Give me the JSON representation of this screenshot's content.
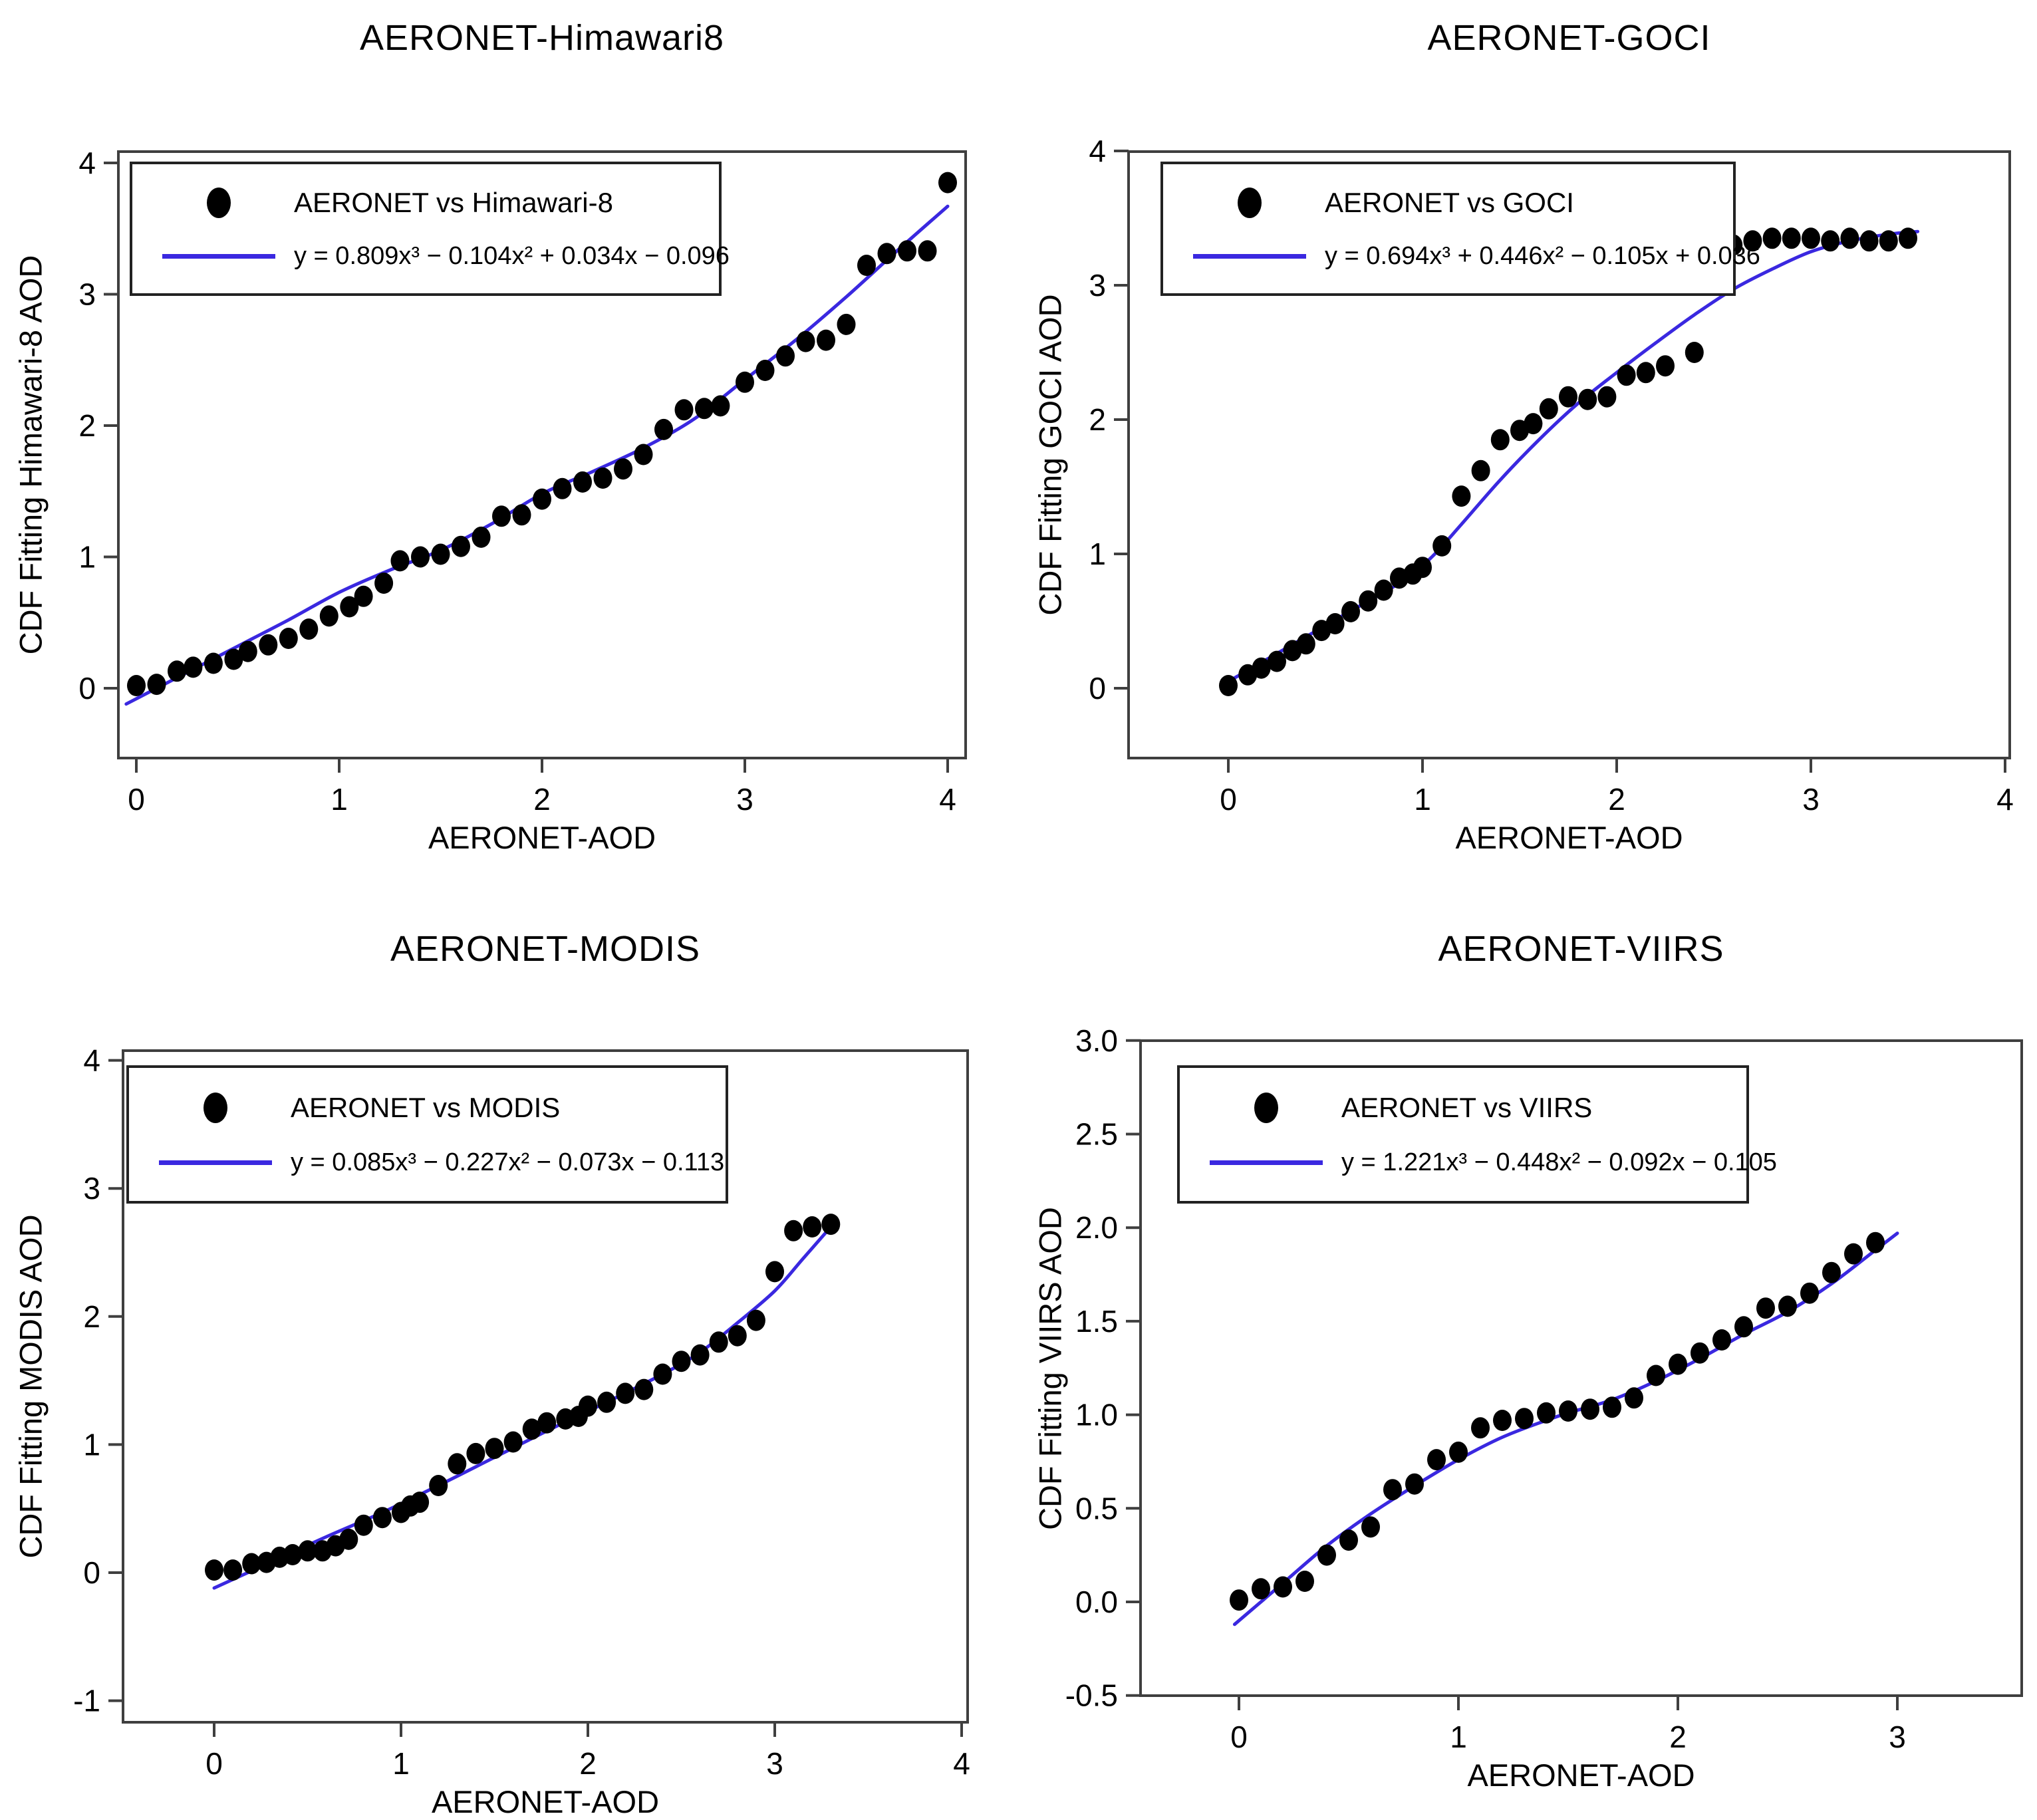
{
  "page": {
    "background": "#ffffff"
  },
  "styles": {
    "fit_line_color": "#3a28e0",
    "point_color": "#000000",
    "axis_color": "#3f3f3f",
    "text_color": "#000000"
  },
  "chart_data": [
    {
      "type": "scatter",
      "title": "AERONET-Himawari8",
      "xlabel": "AERONET-AOD",
      "ylabel": "CDF Fitting Himawari-8 AOD",
      "legend": {
        "position": "top-left",
        "marker_label": "AERONET vs Himawari-8",
        "fit_label": "y = 0.809x³ − 0.104x² + 0.034x − 0.096"
      },
      "xlim": [
        -0.09,
        4.09
      ],
      "ylim": [
        -0.53,
        4.09
      ],
      "grid": false,
      "xtick_values": [
        0,
        1,
        2,
        3,
        4
      ],
      "xtick_labels": [
        "0",
        "1",
        "2",
        "3",
        "4"
      ],
      "ytick_values": [
        0,
        1,
        2,
        3,
        4
      ],
      "ytick_labels": [
        "0",
        "1",
        "2",
        "3",
        "4"
      ],
      "points": [
        [
          0.0,
          0.02
        ],
        [
          0.1,
          0.03
        ],
        [
          0.2,
          0.13
        ],
        [
          0.28,
          0.16
        ],
        [
          0.38,
          0.19
        ],
        [
          0.48,
          0.22
        ],
        [
          0.55,
          0.28
        ],
        [
          0.65,
          0.33
        ],
        [
          0.75,
          0.38
        ],
        [
          0.85,
          0.45
        ],
        [
          0.95,
          0.55
        ],
        [
          1.05,
          0.62
        ],
        [
          1.12,
          0.7
        ],
        [
          1.22,
          0.8
        ],
        [
          1.3,
          0.97
        ],
        [
          1.4,
          1.0
        ],
        [
          1.5,
          1.02
        ],
        [
          1.6,
          1.08
        ],
        [
          1.7,
          1.15
        ],
        [
          1.8,
          1.31
        ],
        [
          1.9,
          1.32
        ],
        [
          2.0,
          1.44
        ],
        [
          2.1,
          1.52
        ],
        [
          2.2,
          1.57
        ],
        [
          2.3,
          1.6
        ],
        [
          2.4,
          1.67
        ],
        [
          2.5,
          1.78
        ],
        [
          2.6,
          1.97
        ],
        [
          2.7,
          2.12
        ],
        [
          2.8,
          2.13
        ],
        [
          2.88,
          2.15
        ],
        [
          3.0,
          2.33
        ],
        [
          3.1,
          2.42
        ],
        [
          3.2,
          2.53
        ],
        [
          3.3,
          2.64
        ],
        [
          3.4,
          2.65
        ],
        [
          3.5,
          2.77
        ],
        [
          3.6,
          3.22
        ],
        [
          3.7,
          3.31
        ],
        [
          3.8,
          3.33
        ],
        [
          3.9,
          3.33
        ],
        [
          4.0,
          3.85
        ]
      ],
      "fit_curve": [
        [
          -0.05,
          -0.12
        ],
        [
          0.25,
          0.12
        ],
        [
          0.5,
          0.32
        ],
        [
          0.75,
          0.52
        ],
        [
          1.0,
          0.73
        ],
        [
          1.25,
          0.9
        ],
        [
          1.5,
          1.05
        ],
        [
          1.75,
          1.25
        ],
        [
          2.0,
          1.48
        ],
        [
          2.25,
          1.65
        ],
        [
          2.5,
          1.83
        ],
        [
          2.75,
          2.05
        ],
        [
          3.0,
          2.35
        ],
        [
          3.25,
          2.65
        ],
        [
          3.5,
          2.98
        ],
        [
          3.75,
          3.33
        ],
        [
          4.0,
          3.67
        ]
      ]
    },
    {
      "type": "scatter",
      "title": "AERONET-GOCI",
      "xlabel": "AERONET-AOD",
      "ylabel": "CDF Fitting GOCI AOD",
      "legend": {
        "position": "top-left",
        "marker_label": "AERONET vs GOCI",
        "fit_label": "y = 0.694x³ + 0.446x² − 0.105x + 0.036"
      },
      "xlim": [
        -0.51,
        4.02
      ],
      "ylim": [
        -0.52,
        3.98
      ],
      "grid": false,
      "xtick_values": [
        0,
        1,
        2,
        3,
        4
      ],
      "xtick_labels": [
        "0",
        "1",
        "2",
        "3",
        "4"
      ],
      "ytick_values": [
        0,
        1,
        2,
        3,
        4
      ],
      "ytick_labels": [
        "0",
        "1",
        "2",
        "3",
        "4"
      ],
      "points": [
        [
          0.0,
          0.02
        ],
        [
          0.1,
          0.1
        ],
        [
          0.17,
          0.15
        ],
        [
          0.25,
          0.2
        ],
        [
          0.33,
          0.28
        ],
        [
          0.4,
          0.33
        ],
        [
          0.48,
          0.43
        ],
        [
          0.55,
          0.48
        ],
        [
          0.63,
          0.57
        ],
        [
          0.72,
          0.65
        ],
        [
          0.8,
          0.73
        ],
        [
          0.88,
          0.82
        ],
        [
          0.95,
          0.85
        ],
        [
          1.0,
          0.9
        ],
        [
          1.1,
          1.06
        ],
        [
          1.2,
          1.43
        ],
        [
          1.3,
          1.62
        ],
        [
          1.4,
          1.85
        ],
        [
          1.5,
          1.92
        ],
        [
          1.57,
          1.97
        ],
        [
          1.65,
          2.08
        ],
        [
          1.75,
          2.17
        ],
        [
          1.85,
          2.15
        ],
        [
          1.95,
          2.17
        ],
        [
          2.05,
          2.33
        ],
        [
          2.15,
          2.35
        ],
        [
          2.25,
          2.4
        ],
        [
          2.4,
          2.5
        ],
        [
          2.5,
          3.2
        ],
        [
          2.6,
          3.3
        ],
        [
          2.7,
          3.33
        ],
        [
          2.8,
          3.35
        ],
        [
          2.9,
          3.35
        ],
        [
          3.0,
          3.35
        ],
        [
          3.1,
          3.33
        ],
        [
          3.2,
          3.35
        ],
        [
          3.3,
          3.33
        ],
        [
          3.4,
          3.33
        ],
        [
          3.5,
          3.35
        ]
      ],
      "fit_curve": [
        [
          0.0,
          0.05
        ],
        [
          0.3,
          0.3
        ],
        [
          0.6,
          0.55
        ],
        [
          0.9,
          0.8
        ],
        [
          1.05,
          0.98
        ],
        [
          1.2,
          1.22
        ],
        [
          1.4,
          1.55
        ],
        [
          1.6,
          1.85
        ],
        [
          1.8,
          2.12
        ],
        [
          2.0,
          2.35
        ],
        [
          2.2,
          2.57
        ],
        [
          2.4,
          2.78
        ],
        [
          2.6,
          2.97
        ],
        [
          2.8,
          3.12
        ],
        [
          3.0,
          3.25
        ],
        [
          3.2,
          3.33
        ],
        [
          3.4,
          3.38
        ],
        [
          3.55,
          3.4
        ]
      ]
    },
    {
      "type": "scatter",
      "title": "AERONET-MODIS",
      "xlabel": "AERONET-AOD",
      "ylabel": "CDF Fitting MODIS AOD",
      "legend": {
        "position": "top-left",
        "marker_label": "AERONET vs MODIS",
        "fit_label": "y = 0.085x³ − 0.227x² − 0.073x − 0.113"
      },
      "xlim": [
        -0.49,
        4.03
      ],
      "ylim": [
        -1.17,
        4.08
      ],
      "grid": false,
      "xtick_values": [
        0,
        1,
        2,
        3,
        4
      ],
      "xtick_labels": [
        "0",
        "1",
        "2",
        "3",
        "4"
      ],
      "ytick_values": [
        -1,
        0,
        1,
        2,
        3,
        4
      ],
      "ytick_labels": [
        "-1",
        "0",
        "1",
        "2",
        "3",
        "4"
      ],
      "points": [
        [
          0.0,
          0.02
        ],
        [
          0.1,
          0.02
        ],
        [
          0.2,
          0.07
        ],
        [
          0.28,
          0.08
        ],
        [
          0.35,
          0.12
        ],
        [
          0.42,
          0.14
        ],
        [
          0.5,
          0.17
        ],
        [
          0.58,
          0.17
        ],
        [
          0.65,
          0.21
        ],
        [
          0.72,
          0.26
        ],
        [
          0.8,
          0.37
        ],
        [
          0.9,
          0.43
        ],
        [
          1.0,
          0.47
        ],
        [
          1.05,
          0.52
        ],
        [
          1.1,
          0.55
        ],
        [
          1.2,
          0.68
        ],
        [
          1.3,
          0.85
        ],
        [
          1.4,
          0.93
        ],
        [
          1.5,
          0.97
        ],
        [
          1.6,
          1.02
        ],
        [
          1.7,
          1.12
        ],
        [
          1.78,
          1.17
        ],
        [
          1.88,
          1.2
        ],
        [
          1.95,
          1.22
        ],
        [
          2.0,
          1.3
        ],
        [
          2.1,
          1.33
        ],
        [
          2.2,
          1.4
        ],
        [
          2.3,
          1.43
        ],
        [
          2.4,
          1.55
        ],
        [
          2.5,
          1.65
        ],
        [
          2.6,
          1.7
        ],
        [
          2.7,
          1.8
        ],
        [
          2.8,
          1.85
        ],
        [
          2.9,
          1.97
        ],
        [
          3.0,
          2.35
        ],
        [
          3.1,
          2.67
        ],
        [
          3.2,
          2.7
        ],
        [
          3.3,
          2.72
        ]
      ],
      "fit_curve": [
        [
          0.0,
          -0.12
        ],
        [
          0.3,
          0.08
        ],
        [
          0.6,
          0.28
        ],
        [
          0.9,
          0.47
        ],
        [
          1.2,
          0.68
        ],
        [
          1.5,
          0.9
        ],
        [
          1.8,
          1.12
        ],
        [
          2.1,
          1.33
        ],
        [
          2.4,
          1.55
        ],
        [
          2.6,
          1.72
        ],
        [
          2.8,
          1.95
        ],
        [
          3.0,
          2.2
        ],
        [
          3.15,
          2.45
        ],
        [
          3.3,
          2.7
        ]
      ]
    },
    {
      "type": "scatter",
      "title": "AERONET-VIIRS",
      "xlabel": "AERONET-AOD",
      "ylabel": "CDF Fitting VIIRS AOD",
      "legend": {
        "position": "top-left",
        "marker_label": "AERONET vs VIIRS",
        "fit_label": "y = 1.221x³ − 0.448x² − 0.092x − 0.105"
      },
      "xlim": [
        -0.45,
        3.57
      ],
      "ylim": [
        -0.5,
        3.0
      ],
      "grid": false,
      "xtick_values": [
        0,
        1,
        2,
        3
      ],
      "xtick_labels": [
        "0",
        "1",
        "2",
        "3"
      ],
      "ytick_values": [
        -0.5,
        0.0,
        0.5,
        1.0,
        1.5,
        2.0,
        2.5,
        3.0
      ],
      "ytick_labels": [
        "-0.5",
        "0.0",
        "0.5",
        "1.0",
        "1.5",
        "2.0",
        "2.5",
        "3.0"
      ],
      "points": [
        [
          0.0,
          0.01
        ],
        [
          0.1,
          0.07
        ],
        [
          0.2,
          0.08
        ],
        [
          0.3,
          0.11
        ],
        [
          0.4,
          0.25
        ],
        [
          0.5,
          0.33
        ],
        [
          0.6,
          0.4
        ],
        [
          0.7,
          0.6
        ],
        [
          0.8,
          0.63
        ],
        [
          0.9,
          0.76
        ],
        [
          1.0,
          0.8
        ],
        [
          1.1,
          0.93
        ],
        [
          1.2,
          0.97
        ],
        [
          1.3,
          0.98
        ],
        [
          1.4,
          1.01
        ],
        [
          1.5,
          1.02
        ],
        [
          1.6,
          1.03
        ],
        [
          1.7,
          1.04
        ],
        [
          1.8,
          1.09
        ],
        [
          1.9,
          1.21
        ],
        [
          2.0,
          1.27
        ],
        [
          2.1,
          1.33
        ],
        [
          2.2,
          1.4
        ],
        [
          2.3,
          1.47
        ],
        [
          2.4,
          1.57
        ],
        [
          2.5,
          1.58
        ],
        [
          2.6,
          1.65
        ],
        [
          2.7,
          1.76
        ],
        [
          2.8,
          1.86
        ],
        [
          2.9,
          1.92
        ]
      ],
      "fit_curve": [
        [
          -0.02,
          -0.12
        ],
        [
          0.2,
          0.1
        ],
        [
          0.4,
          0.3
        ],
        [
          0.6,
          0.47
        ],
        [
          0.8,
          0.62
        ],
        [
          1.0,
          0.76
        ],
        [
          1.2,
          0.88
        ],
        [
          1.4,
          0.97
        ],
        [
          1.5,
          1.01
        ],
        [
          1.7,
          1.08
        ],
        [
          1.9,
          1.18
        ],
        [
          2.1,
          1.3
        ],
        [
          2.3,
          1.43
        ],
        [
          2.5,
          1.55
        ],
        [
          2.7,
          1.7
        ],
        [
          2.9,
          1.88
        ],
        [
          3.0,
          1.97
        ]
      ]
    }
  ]
}
